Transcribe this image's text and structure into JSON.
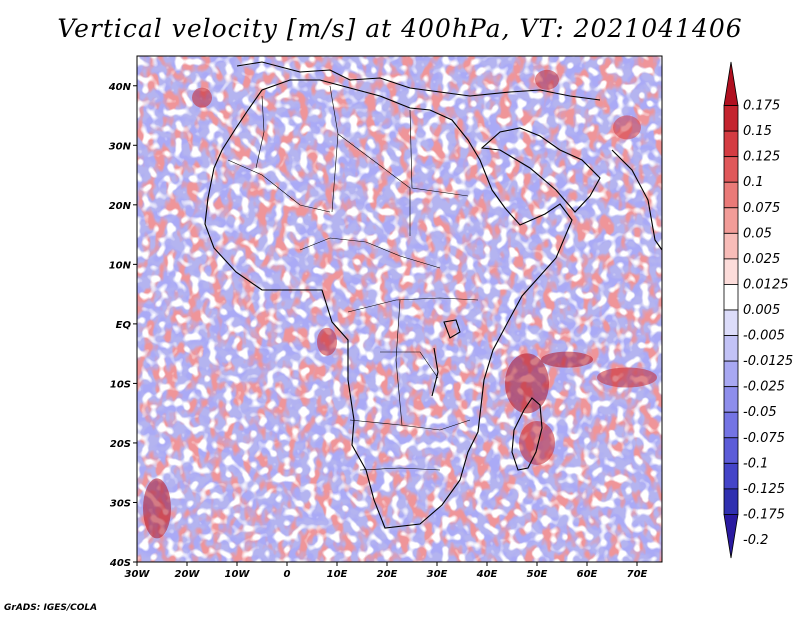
{
  "title": "Vertical velocity [m/s] at 400hPa, VT: 2021041406",
  "credit": "GrADS: IGES/COLA",
  "map": {
    "lon_range": [
      -30,
      75
    ],
    "lat_range": [
      -40,
      45
    ],
    "lon_ticks": [
      {
        "value": -30,
        "label": "30W"
      },
      {
        "value": -20,
        "label": "20W"
      },
      {
        "value": -10,
        "label": "10W"
      },
      {
        "value": 0,
        "label": "0"
      },
      {
        "value": 10,
        "label": "10E"
      },
      {
        "value": 20,
        "label": "20E"
      },
      {
        "value": 30,
        "label": "30E"
      },
      {
        "value": 40,
        "label": "40E"
      },
      {
        "value": 50,
        "label": "50E"
      },
      {
        "value": 60,
        "label": "60E"
      },
      {
        "value": 70,
        "label": "70E"
      }
    ],
    "lat_ticks": [
      {
        "value": 40,
        "label": "40N"
      },
      {
        "value": 30,
        "label": "30N"
      },
      {
        "value": 20,
        "label": "20N"
      },
      {
        "value": 10,
        "label": "10N"
      },
      {
        "value": 0,
        "label": "EQ"
      },
      {
        "value": -10,
        "label": "10S"
      },
      {
        "value": -20,
        "label": "20S"
      },
      {
        "value": -30,
        "label": "30S"
      },
      {
        "value": -40,
        "label": "40S"
      }
    ]
  },
  "colorbar": {
    "levels": [
      {
        "label": "0.175",
        "color": "#b01020"
      },
      {
        "label": "0.15",
        "color": "#c4242e"
      },
      {
        "label": "0.125",
        "color": "#d43c42"
      },
      {
        "label": "0.1",
        "color": "#e0585a"
      },
      {
        "label": "0.075",
        "color": "#ea7a78"
      },
      {
        "label": "0.05",
        "color": "#f29c98"
      },
      {
        "label": "0.025",
        "color": "#f8bcb8"
      },
      {
        "label": "0.0125",
        "color": "#fcdcda"
      },
      {
        "label": "0.005",
        "color": "#ffffff"
      },
      {
        "label": "-0.005",
        "color": "#dcdcfa"
      },
      {
        "label": "-0.0125",
        "color": "#c2c2f6"
      },
      {
        "label": "-0.025",
        "color": "#a8a8f2"
      },
      {
        "label": "-0.05",
        "color": "#8e8eec"
      },
      {
        "label": "-0.075",
        "color": "#7474e4"
      },
      {
        "label": "-0.1",
        "color": "#5c5cd8"
      },
      {
        "label": "-0.125",
        "color": "#4444c8"
      },
      {
        "label": "-0.175",
        "color": "#3030b0"
      },
      {
        "label": "-0.2",
        "color": "#2a1aa0"
      }
    ]
  },
  "colors": {
    "upward_red": "#d43c42",
    "downward_blue": "#5c5cd8",
    "coastline": "#000000"
  }
}
